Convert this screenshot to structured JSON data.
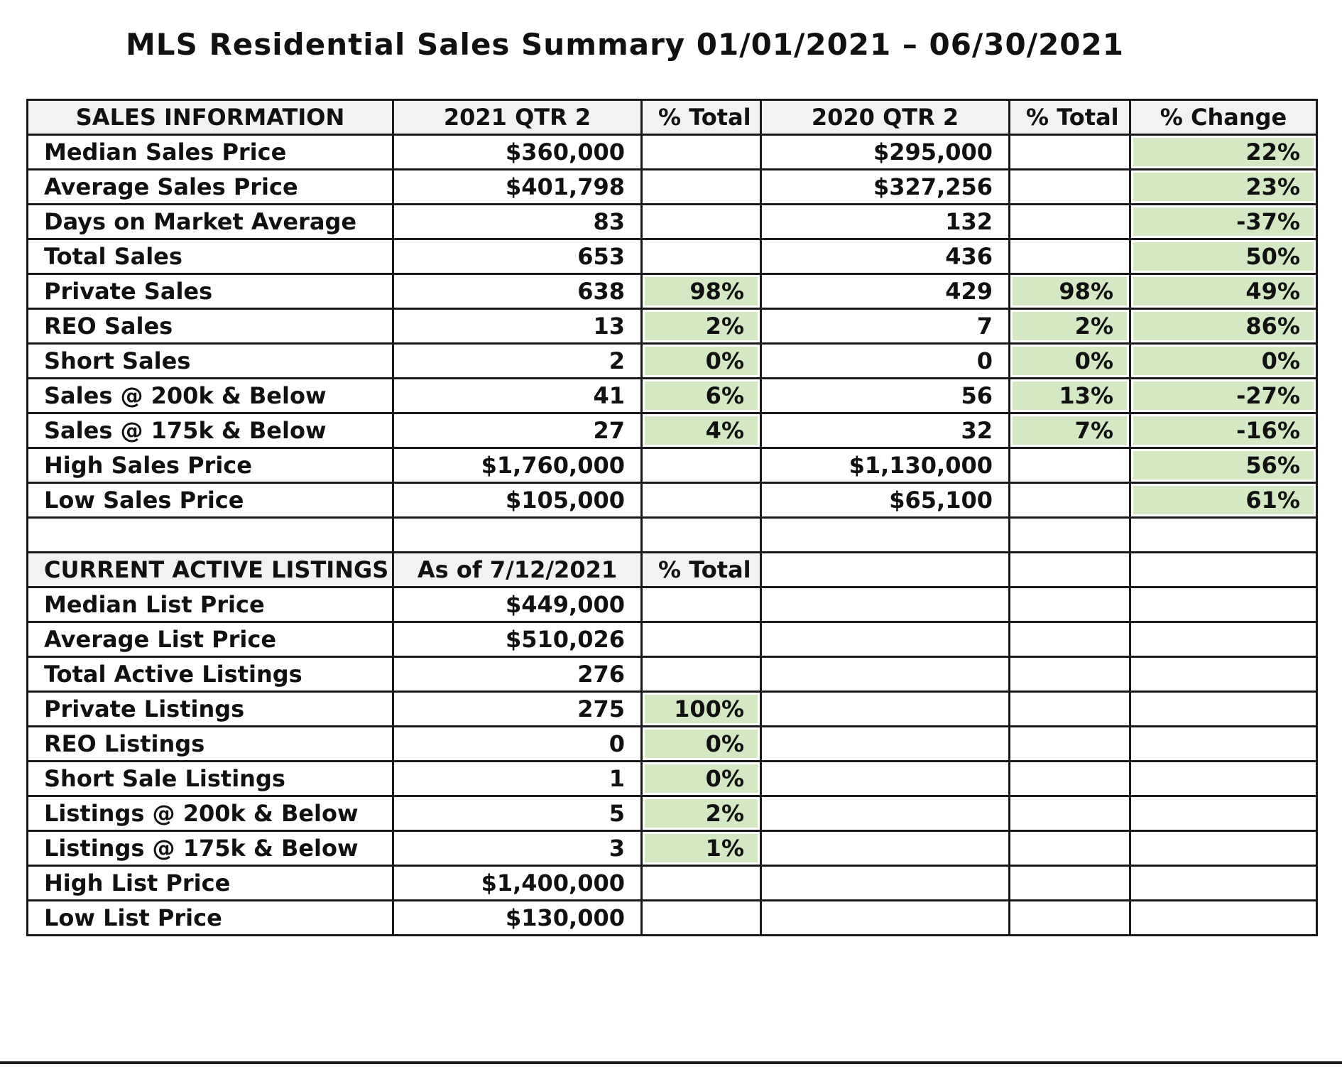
{
  "title": "MLS Residential Sales Summary 01/01/2021 – 06/30/2021",
  "sales": {
    "headers": [
      "SALES INFORMATION",
      "2021 QTR 2",
      "% Total",
      "2020 QTR 2",
      "% Total",
      "% Change"
    ],
    "rows": [
      {
        "label": "Median Sales Price",
        "q2_2021": "$360,000",
        "pct_2021": "",
        "q2_2020": "$295,000",
        "pct_2020": "",
        "change": "22%"
      },
      {
        "label": "Average Sales Price",
        "q2_2021": "$401,798",
        "pct_2021": "",
        "q2_2020": "$327,256",
        "pct_2020": "",
        "change": "23%"
      },
      {
        "label": "Days on Market Average",
        "q2_2021": "83",
        "pct_2021": "",
        "q2_2020": "132",
        "pct_2020": "",
        "change": "-37%"
      },
      {
        "label": "Total Sales",
        "q2_2021": "653",
        "pct_2021": "",
        "q2_2020": "436",
        "pct_2020": "",
        "change": "50%"
      },
      {
        "label": "Private Sales",
        "q2_2021": "638",
        "pct_2021": "98%",
        "q2_2020": "429",
        "pct_2020": "98%",
        "change": "49%"
      },
      {
        "label": "REO Sales",
        "q2_2021": "13",
        "pct_2021": "2%",
        "q2_2020": "7",
        "pct_2020": "2%",
        "change": "86%"
      },
      {
        "label": "Short Sales",
        "q2_2021": "2",
        "pct_2021": "0%",
        "q2_2020": "0",
        "pct_2020": "0%",
        "change": "0%"
      },
      {
        "label": "Sales @ 200k & Below",
        "q2_2021": "41",
        "pct_2021": "6%",
        "q2_2020": "56",
        "pct_2020": "13%",
        "change": "-27%"
      },
      {
        "label": "Sales @ 175k & Below",
        "q2_2021": "27",
        "pct_2021": "4%",
        "q2_2020": "32",
        "pct_2020": "7%",
        "change": "-16%"
      },
      {
        "label": "High Sales Price",
        "q2_2021": "$1,760,000",
        "pct_2021": "",
        "q2_2020": "$1,130,000",
        "pct_2020": "",
        "change": "56%"
      },
      {
        "label": "Low Sales Price",
        "q2_2021": "$105,000",
        "pct_2021": "",
        "q2_2020": "$65,100",
        "pct_2020": "",
        "change": "61%"
      }
    ]
  },
  "listings": {
    "headers": [
      "CURRENT ACTIVE LISTINGS",
      "As of 7/12/2021",
      "% Total"
    ],
    "rows": [
      {
        "label": "Median List Price",
        "value": "$449,000",
        "pct": ""
      },
      {
        "label": "Average List Price",
        "value": "$510,026",
        "pct": ""
      },
      {
        "label": "Total Active Listings",
        "value": "276",
        "pct": ""
      },
      {
        "label": "Private Listings",
        "value": "275",
        "pct": "100%"
      },
      {
        "label": "REO Listings",
        "value": "0",
        "pct": "0%"
      },
      {
        "label": "Short Sale Listings",
        "value": "1",
        "pct": "0%"
      },
      {
        "label": "Listings @ 200k & Below",
        "value": "5",
        "pct": "2%"
      },
      {
        "label": "Listings @ 175k & Below",
        "value": "3",
        "pct": "1%"
      },
      {
        "label": "High List Price",
        "value": "$1,400,000",
        "pct": ""
      },
      {
        "label": "Low List Price",
        "value": "$130,000",
        "pct": ""
      }
    ]
  },
  "colors": {
    "highlight": "#d4e8c4",
    "header_bg": "#f2f2f2",
    "border": "#1a1a1a"
  }
}
